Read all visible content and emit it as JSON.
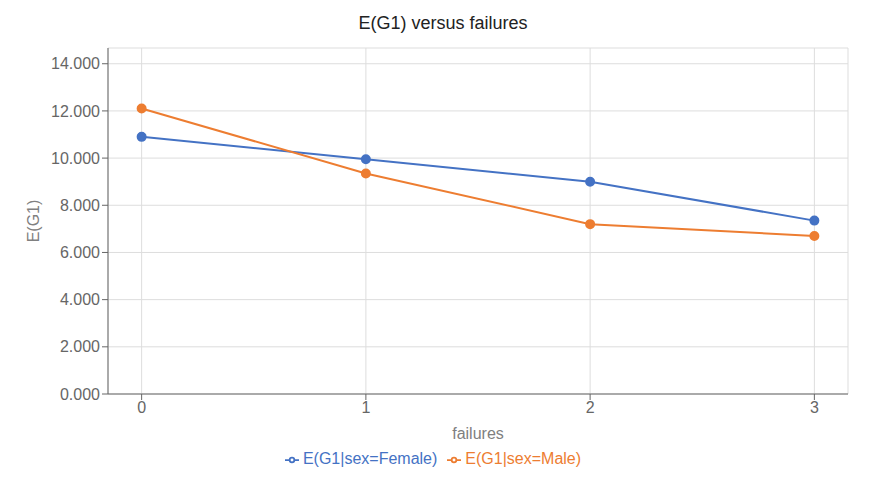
{
  "chart_data": {
    "type": "line",
    "title": "E(G1) versus failures",
    "xlabel": "failures",
    "ylabel": "E(G1)",
    "x": [
      0,
      1,
      2,
      3
    ],
    "series": [
      {
        "name": "E(G1|sex=Female)",
        "color": "#4472C4",
        "values": [
          10.9,
          9.95,
          9.0,
          7.35
        ],
        "marker": "circle"
      },
      {
        "name": "E(G1|sex=Male)",
        "color": "#ED7D31",
        "values": [
          12.1,
          9.35,
          7.2,
          6.7
        ],
        "marker": "circle"
      }
    ],
    "xlim": [
      -0.15,
      3.15
    ],
    "xticks": [
      0,
      1,
      2,
      3
    ],
    "ylim": [
      0,
      14.667
    ],
    "yticks": [
      {
        "value": 0.0,
        "label": "0.000"
      },
      {
        "value": 2.0,
        "label": "2.000"
      },
      {
        "value": 4.0,
        "label": "4.000"
      },
      {
        "value": 6.0,
        "label": "6.000"
      },
      {
        "value": 8.0,
        "label": "8.000"
      },
      {
        "value": 10.0,
        "label": "10.000"
      },
      {
        "value": 12.0,
        "label": "12.000"
      },
      {
        "value": 14.0,
        "label": "14.000"
      }
    ],
    "grid": true,
    "legend": "bottom"
  }
}
